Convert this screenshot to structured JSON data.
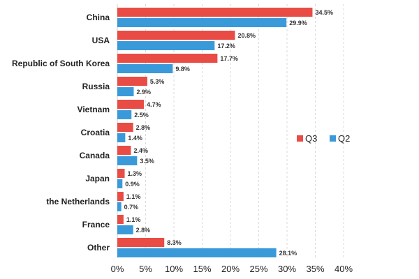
{
  "chart_data": {
    "type": "bar",
    "orientation": "horizontal",
    "categories": [
      "China",
      "USA",
      "Republic of South Korea",
      "Russia",
      "Vietnam",
      "Croatia",
      "Canada",
      "Japan",
      "the Netherlands",
      "France",
      "Other"
    ],
    "series": [
      {
        "name": "Q3",
        "color": "#e84c44",
        "values": [
          34.5,
          20.8,
          17.7,
          5.3,
          4.7,
          2.8,
          2.4,
          1.3,
          1.1,
          1.1,
          8.3
        ],
        "labels": [
          "34.5%",
          "20.8%",
          "17.7%",
          "5.3%",
          "4.7%",
          "2.8%",
          "2.4%",
          "1.3%",
          "1.1%",
          "1.1%",
          "8.3%"
        ]
      },
      {
        "name": "Q2",
        "color": "#3a9ad9",
        "values": [
          29.9,
          17.2,
          9.8,
          2.9,
          2.5,
          1.4,
          3.5,
          0.9,
          0.7,
          2.8,
          28.1
        ],
        "labels": [
          "29.9%",
          "17.2%",
          "9.8%",
          "2.9%",
          "2.5%",
          "1.4%",
          "3.5%",
          "0.9%",
          "0.7%",
          "2.8%",
          "28.1%"
        ]
      }
    ],
    "xlim": [
      0,
      40
    ],
    "xticks": [
      0,
      5,
      10,
      15,
      20,
      25,
      30,
      35,
      40
    ],
    "xtick_labels": [
      "0%",
      "5%",
      "10%",
      "15%",
      "20%",
      "25%",
      "30%",
      "35%",
      "40%"
    ],
    "grid": true,
    "legend_position": "right"
  }
}
